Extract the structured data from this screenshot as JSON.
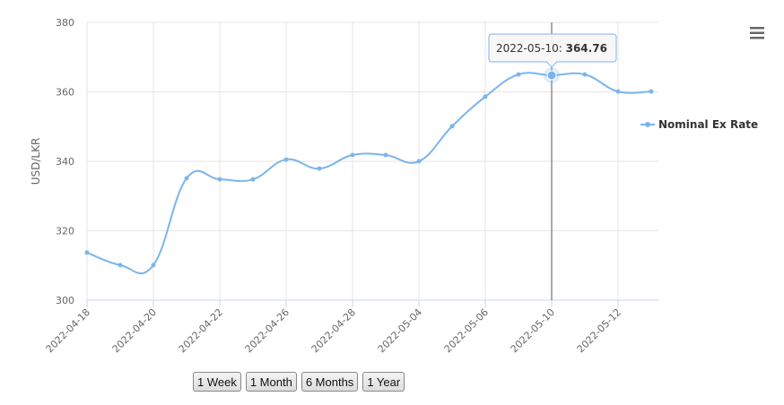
{
  "chart_data": {
    "type": "line",
    "y_axis_title": "USD/LKR",
    "categories": [
      "2022-04-18",
      null,
      "2022-04-20",
      null,
      "2022-04-22",
      null,
      "2022-04-26",
      null,
      "2022-04-28",
      null,
      "2022-05-04",
      null,
      "2022-05-06",
      null,
      "2022-05-10",
      null,
      "2022-05-12",
      null
    ],
    "series": [
      {
        "name": "Nominal Ex Rate",
        "color": "#7cb5ec",
        "values": [
          313.7,
          310.1,
          310.1,
          335.1,
          334.8,
          334.8,
          340.5,
          337.9,
          341.8,
          341.8,
          340.0,
          350.1,
          358.6,
          365.0,
          364.76,
          365.0,
          360.1,
          360.1
        ]
      }
    ],
    "ylim": [
      300,
      380
    ],
    "yticks": [
      300,
      320,
      340,
      360,
      380
    ],
    "grid": true,
    "legend": "right",
    "tooltip_index": 14,
    "range_buttons": [
      "1 Week",
      "1 Month",
      "6 Months",
      "1 Year"
    ]
  }
}
